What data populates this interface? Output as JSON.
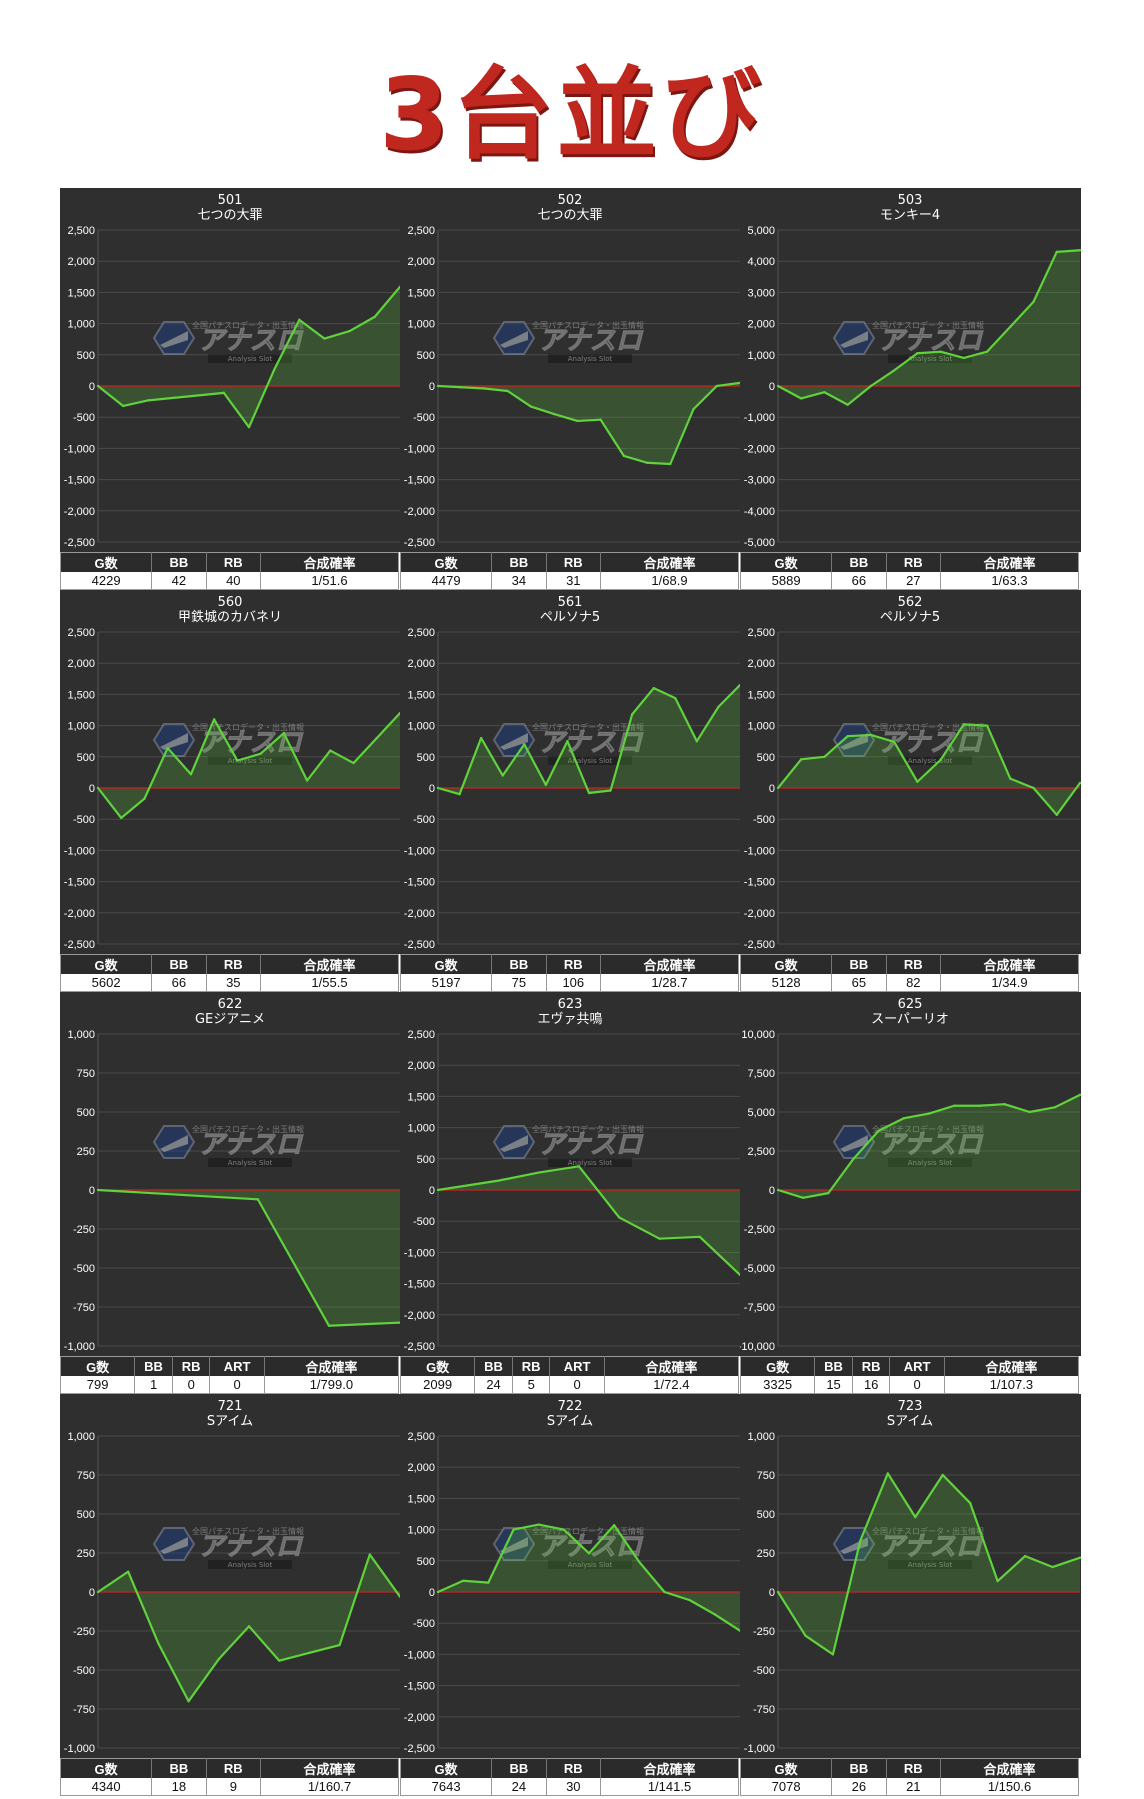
{
  "title": "3台並び",
  "watermark": {
    "brand": "アナスロ",
    "sub": "Analysis Slot",
    "tagline": "全国パチスロデータ・出玉情報"
  },
  "colors": {
    "line": "#5fd23c",
    "fill": "#5fd23c",
    "zero_line": "#cc2020",
    "panel_bg": "#2f2f2f",
    "title_red": "#c0271f"
  },
  "chart_data": [
    {
      "type": "area",
      "number": "501",
      "name": "七つの大罪",
      "ylim": [
        -2500,
        2500
      ],
      "yticks": [
        "2,500",
        "2,000",
        "1,500",
        "1,000",
        "500",
        "0",
        "-500",
        "-1,000",
        "-1,500",
        "-2,000",
        "-2,500"
      ],
      "values": [
        0,
        -320,
        -230,
        -190,
        -150,
        -110,
        -660,
        260,
        1060,
        760,
        880,
        1110,
        1590
      ],
      "stats": {
        "headers": [
          "G数",
          "BB",
          "RB",
          "合成確率"
        ],
        "values": [
          "4229",
          "42",
          "40",
          "1/51.6"
        ]
      }
    },
    {
      "type": "area",
      "number": "502",
      "name": "七つの大罪",
      "ylim": [
        -2500,
        2500
      ],
      "yticks": [
        "2,500",
        "2,000",
        "1,500",
        "1,000",
        "500",
        "0",
        "-500",
        "-1,000",
        "-1,500",
        "-2,000",
        "-2,500"
      ],
      "values": [
        0,
        -20,
        -40,
        -80,
        -330,
        -450,
        -560,
        -540,
        -1120,
        -1230,
        -1250,
        -370,
        0,
        50
      ],
      "stats": {
        "headers": [
          "G数",
          "BB",
          "RB",
          "合成確率"
        ],
        "values": [
          "4479",
          "34",
          "31",
          "1/68.9"
        ]
      }
    },
    {
      "type": "area",
      "number": "503",
      "name": "モンキー4",
      "ylim": [
        -5000,
        5000
      ],
      "yticks": [
        "5,000",
        "4,000",
        "3,000",
        "2,000",
        "1,000",
        "0",
        "-1,000",
        "-2,000",
        "-3,000",
        "-4,000",
        "-5,000"
      ],
      "values": [
        0,
        -400,
        -200,
        -600,
        0,
        500,
        1050,
        1100,
        900,
        1100,
        1900,
        2700,
        4300,
        4350
      ],
      "stats": {
        "headers": [
          "G数",
          "BB",
          "RB",
          "合成確率"
        ],
        "values": [
          "5889",
          "66",
          "27",
          "1/63.3"
        ]
      }
    },
    {
      "type": "area",
      "number": "560",
      "name": "甲鉄城のカバネリ",
      "ylim": [
        -2500,
        2500
      ],
      "yticks": [
        "2,500",
        "2,000",
        "1,500",
        "1,000",
        "500",
        "0",
        "-500",
        "-1,000",
        "-1,500",
        "-2,000",
        "-2,500"
      ],
      "values": [
        0,
        -480,
        -170,
        640,
        220,
        1100,
        440,
        550,
        880,
        120,
        600,
        400,
        800,
        1200
      ],
      "stats": {
        "headers": [
          "G数",
          "BB",
          "RB",
          "合成確率"
        ],
        "values": [
          "5602",
          "66",
          "35",
          "1/55.5"
        ]
      }
    },
    {
      "type": "area",
      "number": "561",
      "name": "ペルソナ5",
      "ylim": [
        -2500,
        2500
      ],
      "yticks": [
        "2,500",
        "2,000",
        "1,500",
        "1,000",
        "500",
        "0",
        "-500",
        "-1,000",
        "-1,500",
        "-2,000",
        "-2,500"
      ],
      "values": [
        0,
        -100,
        800,
        200,
        700,
        50,
        750,
        -80,
        -40,
        1180,
        1600,
        1440,
        750,
        1300,
        1650
      ],
      "stats": {
        "headers": [
          "G数",
          "BB",
          "RB",
          "合成確率"
        ],
        "values": [
          "5197",
          "75",
          "106",
          "1/28.7"
        ]
      }
    },
    {
      "type": "area",
      "number": "562",
      "name": "ペルソナ5",
      "ylim": [
        -2500,
        2500
      ],
      "yticks": [
        "2,500",
        "2,000",
        "1,500",
        "1,000",
        "500",
        "0",
        "-500",
        "-1,000",
        "-1,500",
        "-2,000",
        "-2,500"
      ],
      "values": [
        0,
        460,
        500,
        830,
        850,
        740,
        100,
        450,
        1020,
        1000,
        150,
        0,
        -430,
        80
      ],
      "stats": {
        "headers": [
          "G数",
          "BB",
          "RB",
          "合成確率"
        ],
        "values": [
          "5128",
          "65",
          "82",
          "1/34.9"
        ]
      }
    },
    {
      "type": "area",
      "number": "622",
      "name": "GEジアニメ",
      "ylim": [
        -1000,
        1000
      ],
      "yticks": [
        "1,000",
        "750",
        "500",
        "250",
        "0",
        "-250",
        "-500",
        "-750",
        "-1,000"
      ],
      "values": [
        0,
        -60,
        -870,
        -850
      ],
      "x": [
        0,
        9,
        13,
        17
      ],
      "stats": {
        "headers": [
          "G数",
          "BB",
          "RB",
          "ART",
          "合成確率"
        ],
        "values": [
          "799",
          "1",
          "0",
          "0",
          "1/799.0"
        ]
      }
    },
    {
      "type": "area",
      "number": "623",
      "name": "エヴァ共鳴",
      "ylim": [
        -2500,
        2500
      ],
      "yticks": [
        "2,500",
        "2,000",
        "1,500",
        "1,000",
        "500",
        "0",
        "-500",
        "-1,000",
        "-1,500",
        "-2,000",
        "-2,500"
      ],
      "values": [
        0,
        150,
        280,
        380,
        -440,
        -780,
        -750,
        -1360
      ],
      "x": [
        0,
        3,
        5,
        7,
        9,
        11,
        13,
        15
      ],
      "stats": {
        "headers": [
          "G数",
          "BB",
          "RB",
          "ART",
          "合成確率"
        ],
        "values": [
          "2099",
          "24",
          "5",
          "0",
          "1/72.4"
        ]
      }
    },
    {
      "type": "area",
      "number": "625",
      "name": "スーパーリオ",
      "ylim": [
        -10000,
        10000
      ],
      "yticks": [
        "10,000",
        "7,500",
        "5,000",
        "2,500",
        "0",
        "-2,500",
        "-5,000",
        "-7,500",
        "-10,000"
      ],
      "values": [
        0,
        -500,
        -200,
        2000,
        3800,
        4600,
        4900,
        5400,
        5400,
        5500,
        5000,
        5300,
        6100
      ],
      "stats": {
        "headers": [
          "G数",
          "BB",
          "RB",
          "ART",
          "合成確率"
        ],
        "values": [
          "3325",
          "15",
          "16",
          "0",
          "1/107.3"
        ]
      }
    },
    {
      "type": "area",
      "number": "721",
      "name": "Sアイム",
      "ylim": [
        -1000,
        1000
      ],
      "yticks": [
        "1,000",
        "750",
        "500",
        "250",
        "0",
        "-250",
        "-500",
        "-750",
        "-1,000"
      ],
      "values": [
        0,
        130,
        -330,
        -700,
        -430,
        -220,
        -440,
        -390,
        -340,
        240,
        -30
      ],
      "stats": {
        "headers": [
          "G数",
          "BB",
          "RB",
          "合成確率"
        ],
        "values": [
          "4340",
          "18",
          "9",
          "1/160.7"
        ]
      }
    },
    {
      "type": "area",
      "number": "722",
      "name": "Sアイム",
      "ylim": [
        -2500,
        2500
      ],
      "yticks": [
        "2,500",
        "2,000",
        "1,500",
        "1,000",
        "500",
        "0",
        "-500",
        "-1,000",
        "-1,500",
        "-2,000",
        "-2,500"
      ],
      "values": [
        0,
        180,
        150,
        1000,
        1080,
        1000,
        620,
        1070,
        480,
        0,
        -130,
        -360,
        -620
      ],
      "stats": {
        "headers": [
          "G数",
          "BB",
          "RB",
          "合成確率"
        ],
        "values": [
          "7643",
          "24",
          "30",
          "1/141.5"
        ]
      }
    },
    {
      "type": "area",
      "number": "723",
      "name": "Sアイム",
      "ylim": [
        -1000,
        1000
      ],
      "yticks": [
        "1,000",
        "750",
        "500",
        "250",
        "0",
        "-250",
        "-500",
        "-750",
        "-1,000"
      ],
      "values": [
        0,
        -280,
        -400,
        330,
        760,
        480,
        750,
        570,
        70,
        230,
        160,
        220
      ],
      "stats": {
        "headers": [
          "G数",
          "BB",
          "RB",
          "合成確率"
        ],
        "values": [
          "7078",
          "26",
          "21",
          "1/150.6"
        ]
      }
    }
  ]
}
